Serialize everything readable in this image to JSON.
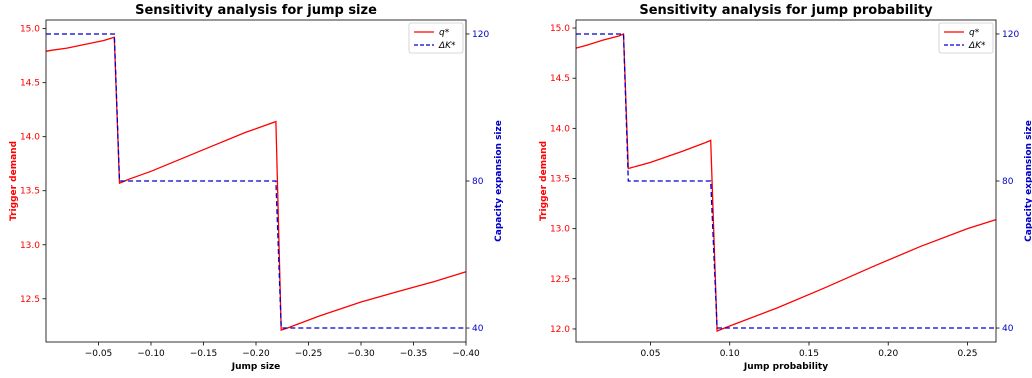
{
  "colors": {
    "q_series": "#ff0000",
    "k_series": "#0000cc",
    "axis": "#000000"
  },
  "chart_data": [
    {
      "type": "line",
      "title": "Sensitivity analysis for jump size",
      "xlabel": "Jump size",
      "ylabel_left": "Trigger demand",
      "ylabel_right": "Capacity expansion size",
      "xlim": [
        0.0,
        -0.4
      ],
      "x_ticks": [
        -0.05,
        -0.1,
        -0.15,
        -0.2,
        -0.25,
        -0.3,
        -0.35,
        -0.4
      ],
      "x_tick_labels": [
        "−0.05",
        "−0.10",
        "−0.15",
        "−0.20",
        "−0.25",
        "−0.30",
        "−0.35",
        "−0.40"
      ],
      "ylim_left": [
        12.1,
        15.08
      ],
      "y_ticks_left": [
        12.5,
        13.0,
        13.5,
        14.0,
        14.5,
        15.0
      ],
      "y_tick_labels_left": [
        "12.5",
        "13.0",
        "13.5",
        "14.0",
        "14.5",
        "15.0"
      ],
      "ylim_right": [
        36.2,
        123.8
      ],
      "y_ticks_right": [
        40,
        80,
        120
      ],
      "y_tick_labels_right": [
        "40",
        "80",
        "120"
      ],
      "legend": {
        "position": "top-right",
        "entries": [
          "q*",
          "ΔK*"
        ]
      },
      "series": [
        {
          "name": "q*",
          "axis": "left",
          "style": "solid",
          "x": [
            0.0,
            -0.005,
            -0.02,
            -0.04,
            -0.055,
            -0.065,
            -0.07,
            -0.08,
            -0.1,
            -0.13,
            -0.16,
            -0.19,
            -0.219,
            -0.224,
            -0.23,
            -0.26,
            -0.3,
            -0.34,
            -0.37,
            -0.4
          ],
          "y": [
            14.79,
            14.8,
            14.82,
            14.86,
            14.89,
            14.92,
            13.57,
            13.61,
            13.68,
            13.8,
            13.92,
            14.04,
            14.14,
            12.21,
            12.23,
            12.34,
            12.47,
            12.58,
            12.66,
            12.75
          ]
        },
        {
          "name": "ΔK*",
          "axis": "right",
          "style": "dashed",
          "x": [
            0.0,
            -0.065,
            -0.07,
            -0.219,
            -0.224,
            -0.4
          ],
          "y": [
            120,
            120,
            80,
            80,
            40,
            40
          ]
        }
      ]
    },
    {
      "type": "line",
      "title": "Sensitivity analysis for jump probability",
      "xlabel": "Jump probability",
      "ylabel_left": "Trigger demand",
      "ylabel_right": "Capacity expansion size",
      "xlim": [
        0.003,
        0.268
      ],
      "x_ticks": [
        0.05,
        0.1,
        0.15,
        0.2,
        0.25
      ],
      "x_tick_labels": [
        "0.05",
        "0.10",
        "0.15",
        "0.20",
        "0.25"
      ],
      "ylim_left": [
        11.87,
        15.08
      ],
      "y_ticks_left": [
        12.0,
        12.5,
        13.0,
        13.5,
        14.0,
        14.5,
        15.0
      ],
      "y_tick_labels_left": [
        "12.0",
        "12.5",
        "13.0",
        "13.5",
        "14.0",
        "14.5",
        "15.0"
      ],
      "ylim_right": [
        36.2,
        123.8
      ],
      "y_ticks_right": [
        40,
        80,
        120
      ],
      "y_tick_labels_right": [
        "40",
        "80",
        "120"
      ],
      "legend": {
        "position": "top-right",
        "entries": [
          "q*",
          "ΔK*"
        ]
      },
      "series": [
        {
          "name": "q*",
          "axis": "left",
          "style": "solid",
          "x": [
            0.003,
            0.01,
            0.02,
            0.03,
            0.033,
            0.036,
            0.05,
            0.07,
            0.085,
            0.088,
            0.092,
            0.1,
            0.13,
            0.16,
            0.19,
            0.22,
            0.25,
            0.268
          ],
          "y": [
            14.8,
            14.83,
            14.88,
            14.92,
            14.94,
            13.6,
            13.66,
            13.77,
            13.86,
            13.88,
            11.98,
            12.03,
            12.21,
            12.41,
            12.62,
            12.82,
            13.0,
            13.09
          ]
        },
        {
          "name": "ΔK*",
          "axis": "right",
          "style": "dashed",
          "x": [
            0.003,
            0.033,
            0.036,
            0.088,
            0.092,
            0.268
          ],
          "y": [
            120,
            120,
            80,
            80,
            40,
            40
          ]
        }
      ]
    }
  ]
}
